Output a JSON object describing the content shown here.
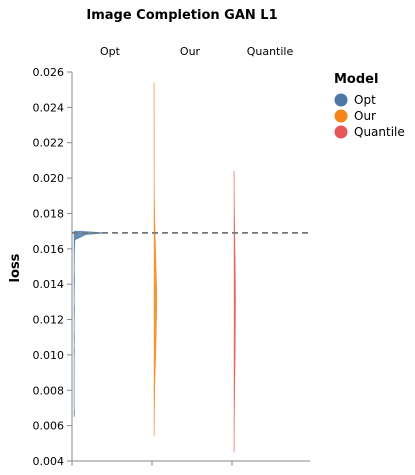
{
  "chart_data": {
    "type": "violin",
    "title": "Image Completion GAN L1",
    "ylabel": "loss",
    "xlabel": "",
    "ylim": [
      0.004,
      0.026
    ],
    "yticks": [
      "0.026",
      "0.024",
      "0.022",
      "0.020",
      "0.018",
      "0.016",
      "0.014",
      "0.012",
      "0.010",
      "0.008",
      "0.006",
      "0.004"
    ],
    "reference_line": 0.0169,
    "legend": {
      "title": "Model",
      "placement": "right",
      "items": [
        {
          "label": "Opt",
          "color": "#4c78a8"
        },
        {
          "label": "Our",
          "color": "#f58518"
        },
        {
          "label": "Quantile",
          "color": "#e45756"
        }
      ]
    },
    "series": [
      {
        "name": "Opt",
        "color": "#4c78a8",
        "range": [
          0.0065,
          0.017
        ],
        "mode": 0.0169,
        "profile": [
          [
            0.0065,
            0.3
          ],
          [
            0.0067,
            0.6
          ],
          [
            0.007,
            0.2
          ],
          [
            0.008,
            0.2
          ],
          [
            0.009,
            0.2
          ],
          [
            0.01,
            0.3
          ],
          [
            0.0102,
            0.6
          ],
          [
            0.0105,
            0.2
          ],
          [
            0.011,
            0.5
          ],
          [
            0.0115,
            0.2
          ],
          [
            0.012,
            0.3
          ],
          [
            0.0126,
            0.6
          ],
          [
            0.013,
            0.2
          ],
          [
            0.0143,
            0.6
          ],
          [
            0.015,
            0.3
          ],
          [
            0.016,
            0.6
          ],
          [
            0.0165,
            1
          ],
          [
            0.0168,
            12
          ],
          [
            0.0169,
            33
          ],
          [
            0.017,
            6
          ]
        ]
      },
      {
        "name": "Our",
        "color": "#f58518",
        "range": [
          0.0054,
          0.0254
        ],
        "mode": 0.0132,
        "profile": [
          [
            0.0054,
            0.2
          ],
          [
            0.007,
            0.5
          ],
          [
            0.0085,
            0.9
          ],
          [
            0.0095,
            1.5
          ],
          [
            0.0105,
            2.0
          ],
          [
            0.0115,
            2.4
          ],
          [
            0.0125,
            2.7
          ],
          [
            0.0132,
            2.8
          ],
          [
            0.014,
            2.6
          ],
          [
            0.015,
            2.1
          ],
          [
            0.016,
            1.6
          ],
          [
            0.017,
            1.1
          ],
          [
            0.018,
            0.7
          ],
          [
            0.019,
            0.4
          ],
          [
            0.021,
            0.2
          ],
          [
            0.0254,
            0.1
          ]
        ]
      },
      {
        "name": "Quantile",
        "color": "#e45756",
        "range": [
          0.0045,
          0.0204
        ],
        "mode": 0.013,
        "profile": [
          [
            0.0045,
            0.1
          ],
          [
            0.006,
            0.3
          ],
          [
            0.0075,
            0.6
          ],
          [
            0.009,
            1.0
          ],
          [
            0.0105,
            1.3
          ],
          [
            0.012,
            1.5
          ],
          [
            0.013,
            1.6
          ],
          [
            0.014,
            1.5
          ],
          [
            0.015,
            1.3
          ],
          [
            0.016,
            1.0
          ],
          [
            0.017,
            0.8
          ],
          [
            0.018,
            0.5
          ],
          [
            0.019,
            0.3
          ],
          [
            0.0204,
            0.1
          ]
        ]
      }
    ],
    "columns": [
      "Opt",
      "Our",
      "Quantile"
    ]
  }
}
